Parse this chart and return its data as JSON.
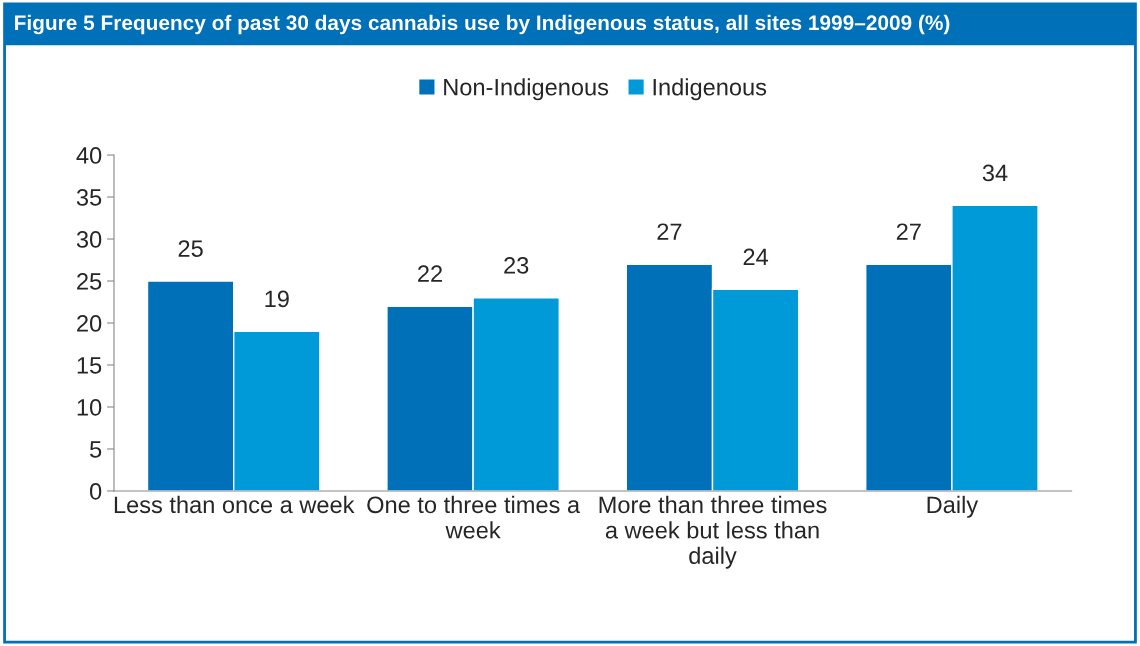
{
  "chart_data": {
    "type": "bar",
    "title": "Figure 5 Frequency of past 30 days cannabis use by Indigenous status, all sites 1999–2009 (%)",
    "categories": [
      "Less than once a week",
      "One to three times a week",
      "More than three times a week but less than daily",
      "Daily"
    ],
    "series": [
      {
        "name": "Non-Indigenous",
        "color": "#0070b8",
        "values": [
          25,
          22,
          27,
          27
        ]
      },
      {
        "name": "Indigenous",
        "color": "#009ad9",
        "values": [
          19,
          23,
          24,
          34
        ]
      }
    ],
    "ylim": [
      0,
      40
    ],
    "yticks": [
      0,
      5,
      10,
      15,
      20,
      25,
      30,
      35,
      40
    ],
    "data_labels": true,
    "legend": "top",
    "grid": false
  }
}
